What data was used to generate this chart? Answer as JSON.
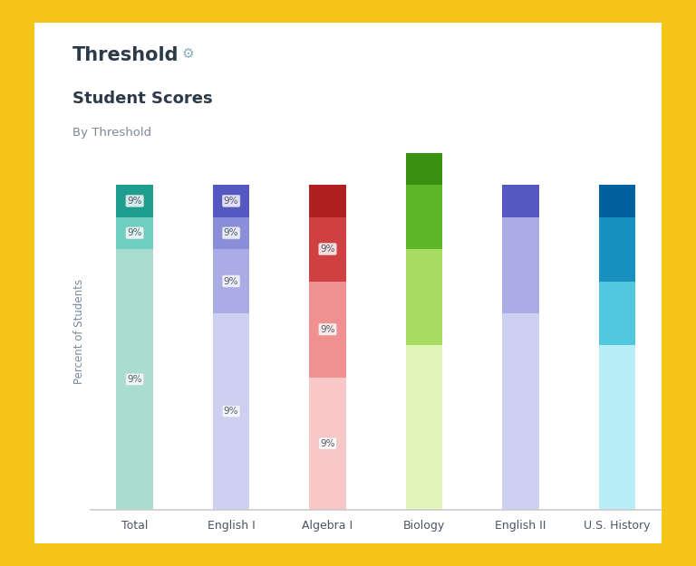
{
  "title": "Threshold",
  "subtitle": "Student Scores",
  "sub_subtitle": "By Threshold",
  "gear_symbol": "⚙",
  "categories": [
    "Total",
    "English I",
    "Algebra I",
    "Biology",
    "English II",
    "U.S. History"
  ],
  "segments": [
    {
      "label": "Total",
      "values": [
        73,
        9,
        9,
        9
      ],
      "colors": [
        "#a8ddd0",
        "#6ecebf",
        "#1e9e8e",
        "#ffffff"
      ],
      "show_label": [
        true,
        true,
        true,
        false
      ]
    },
    {
      "label": "English I",
      "values": [
        55,
        18,
        9,
        9,
        9
      ],
      "colors": [
        "#d0d4f4",
        "#b0b4e8",
        "#8488d8",
        "#5558c0",
        "#ffffff"
      ],
      "show_label": [
        true,
        true,
        true,
        true,
        false
      ]
    },
    {
      "label": "Algebra I",
      "values": [
        37,
        18,
        18,
        18,
        9
      ],
      "colors": [
        "#f8cece",
        "#f09090",
        "#d04040",
        "#b02020",
        "#ffffff"
      ],
      "show_label": [
        true,
        true,
        true,
        false,
        false
      ]
    },
    {
      "label": "Biology",
      "values": [
        46,
        18,
        18,
        9,
        9
      ],
      "colors": [
        "#e0f5c0",
        "#a8dc60",
        "#5cb828",
        "#3a9010",
        "#ffffff"
      ],
      "show_label": [
        false,
        false,
        false,
        false,
        false
      ]
    },
    {
      "label": "English II",
      "values": [
        55,
        18,
        18,
        9
      ],
      "colors": [
        "#d0d4f4",
        "#b0b4e8",
        "#5558c0",
        "#ffffff"
      ],
      "show_label": [
        false,
        false,
        false,
        false
      ]
    },
    {
      "label": "U.S. History",
      "values": [
        46,
        18,
        18,
        9,
        9
      ],
      "colors": [
        "#b8eef8",
        "#50c8e0",
        "#1890c0",
        "#0060a0",
        "#ffffff"
      ],
      "show_label": [
        false,
        false,
        false,
        false,
        false
      ]
    }
  ],
  "labels": {
    "Total": [
      [
        0,
        "9%"
      ],
      [
        1,
        "9%"
      ],
      [
        2,
        "9%"
      ]
    ],
    "English I": [
      [
        0,
        "9%"
      ],
      [
        1,
        "9%"
      ],
      [
        2,
        "9%"
      ],
      [
        3,
        "9%"
      ]
    ],
    "Algebra I": [
      [
        1,
        "9%"
      ],
      [
        2,
        "9%"
      ],
      [
        3,
        "9%"
      ]
    ],
    "Biology": [],
    "English II": [],
    "U.S. History": []
  },
  "ylabel": "Percent of Students",
  "background_color": "#ffffff",
  "outer_background": "#f5c518",
  "title_color": "#2d3a4a",
  "subtitle_color": "#2d3a4a",
  "subsubtitle_color": "#7a8a9a",
  "bar_width": 0.38,
  "ylim": [
    0,
    100
  ]
}
